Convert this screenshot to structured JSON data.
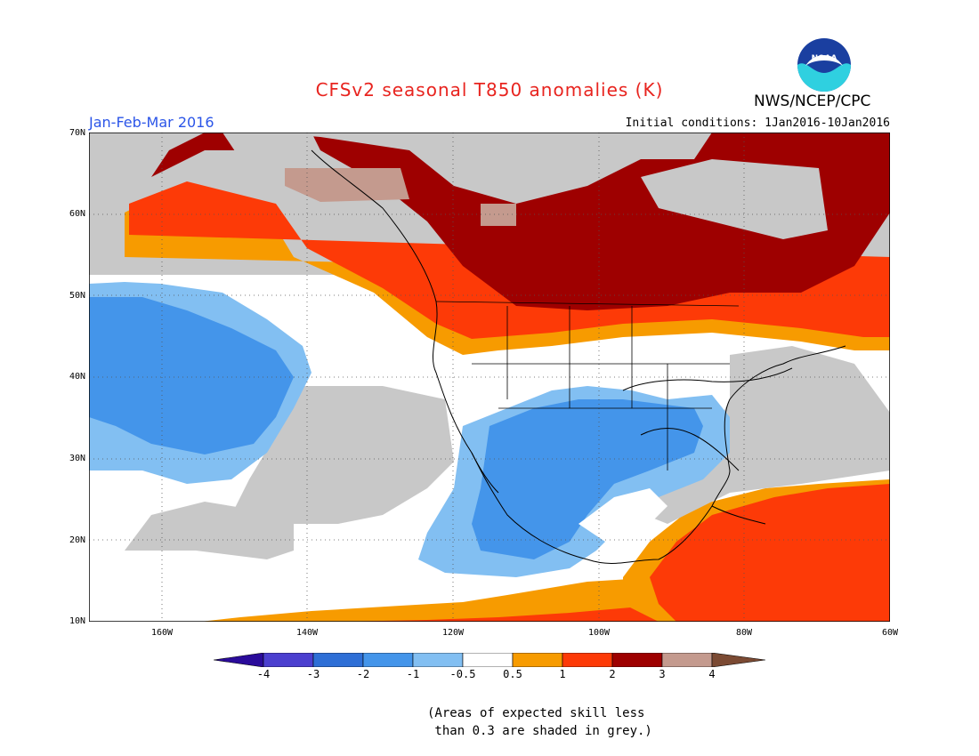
{
  "title": "CFSv2 seasonal T850 anomalies (K)",
  "agency": "NWS/NCEP/CPC",
  "logo_text": "NOAA",
  "season": "Jan-Feb-Mar 2016",
  "initial_conditions": "Initial conditions: 1Jan2016-10Jan2016",
  "lat_labels": [
    "70N",
    "60N",
    "50N",
    "40N",
    "30N",
    "20N",
    "10N"
  ],
  "lon_labels": [
    "160W",
    "140W",
    "120W",
    "100W",
    "80W",
    "60W"
  ],
  "colorbar": {
    "ticks": [
      "-4",
      "-3",
      "-2",
      "-1",
      "-0.5",
      "0.5",
      "1",
      "2",
      "3",
      "4"
    ],
    "colors": [
      "#2a0b9a",
      "#4b3fcf",
      "#2e6fd6",
      "#4495ea",
      "#82bff2",
      "#ffffff",
      "#f79b00",
      "#fd3a07",
      "#9e0000",
      "#c49a8e",
      "#7b4a33"
    ],
    "colors_note": "ordered from below -4 to above 4"
  },
  "skill_note_line1": "(Areas of expected skill less",
  "skill_note_line2": " than 0.3 are shaded in grey.)",
  "map_colors": {
    "grey": "#c8c8c8",
    "cold_1": "#82bff2",
    "cold_2": "#4495ea",
    "warm_05": "#f79b00",
    "warm_1": "#fd3a07",
    "warm_2": "#9e0000",
    "warm_3": "#c49a8e"
  }
}
